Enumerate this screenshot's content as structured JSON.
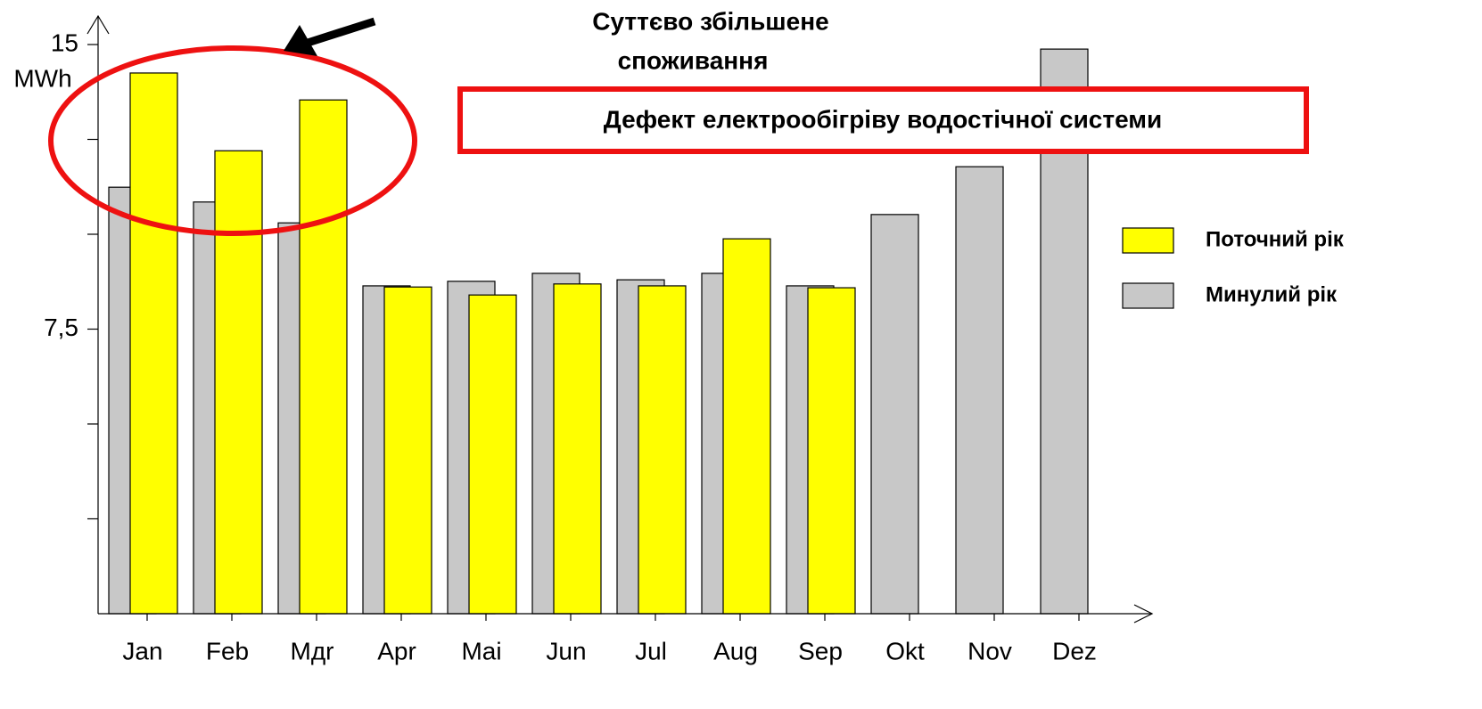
{
  "chart_data": {
    "type": "bar",
    "y_axis_label": "MWh",
    "highlight_note": [
      "Суттєво збільшене",
      "споживання"
    ],
    "defect_note": "Дефект електрообігріву водостічної системи",
    "categories": [
      "Jan",
      "Feb",
      "Mдr",
      "Apr",
      "Mai",
      "Jun",
      "Jul",
      "Aug",
      "Sep",
      "Okt",
      "Nov",
      "Dez"
    ],
    "series": [
      {
        "name": "Минулий рік",
        "color": "#c8c8c8",
        "values": [
          11.24,
          10.85,
          10.3,
          8.64,
          8.76,
          8.97,
          8.8,
          8.97,
          8.64,
          10.52,
          11.78,
          14.88
        ]
      },
      {
        "name": "Поточний рік",
        "color": "#ffff00",
        "values": [
          14.25,
          12.2,
          13.54,
          8.61,
          8.4,
          8.69,
          8.64,
          9.88,
          8.59,
          null,
          null,
          null
        ]
      }
    ],
    "ylim": [
      0,
      15
    ],
    "yticks": [
      15,
      {
        "value": 7.5,
        "label": "7,5"
      }
    ],
    "minor_yticks": [
      2.5,
      5,
      10,
      12.5
    ],
    "legend": "right"
  }
}
